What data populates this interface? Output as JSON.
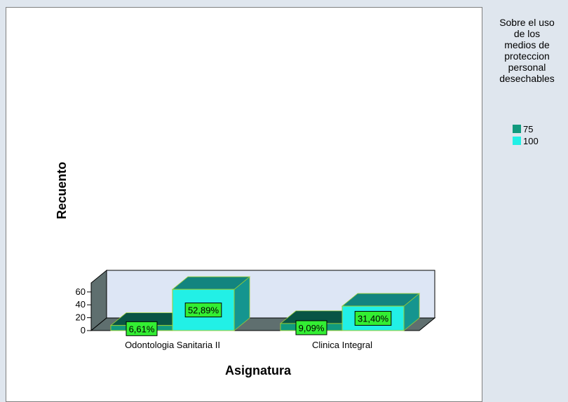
{
  "chart_data": {
    "type": "bar",
    "xlabel": "Asignatura",
    "ylabel": "Recuento",
    "ylim": [
      0,
      74
    ],
    "yticks": [
      0,
      20,
      40,
      60
    ],
    "categories": [
      "Odontologia Sanitaria II",
      "Clinica Integral"
    ],
    "legend_title": "Sobre el uso\nde los\nmedios de\nproteccion\npersonal\ndesechables",
    "legend_position": "right",
    "series": [
      {
        "name": "75",
        "color": "#119a7e",
        "values": [
          8,
          11
        ],
        "labels": [
          "6,61%",
          "9,09%"
        ]
      },
      {
        "name": "100",
        "color": "#22f0e6",
        "values": [
          64,
          38
        ],
        "labels": [
          "52,89%",
          "31,40%"
        ]
      }
    ],
    "label_box_color": "#33ee33"
  }
}
